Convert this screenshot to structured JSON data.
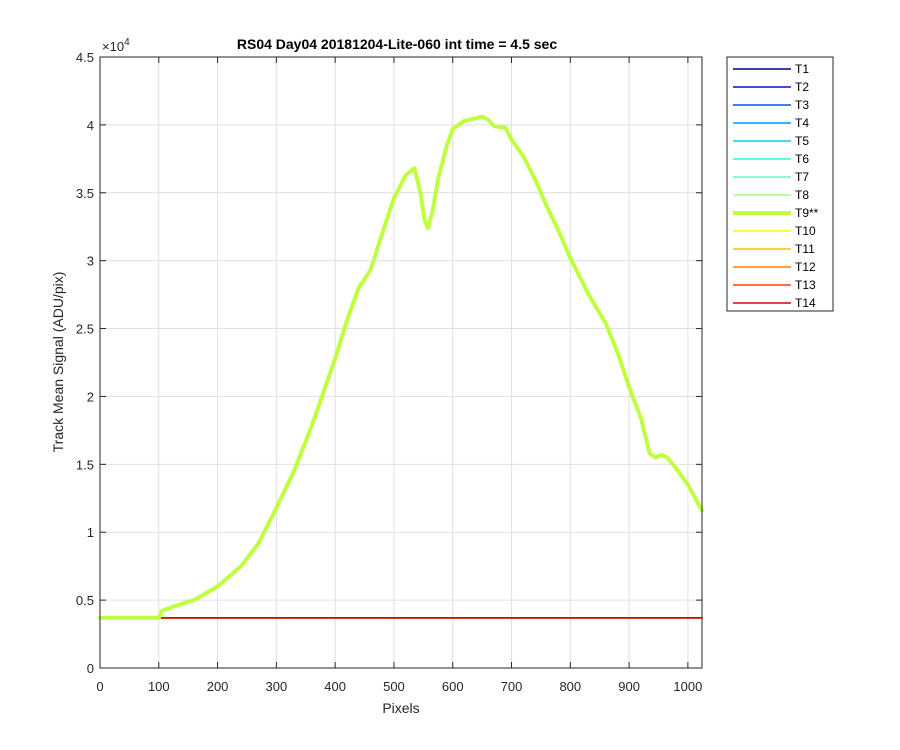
{
  "chart_data": {
    "type": "line",
    "title": "RS04 Day04 20181204-Lite-060 int time = 4.5 sec",
    "xlabel": "Pixels",
    "ylabel": "Track Mean Signal (ADU/pix)",
    "y_exponent_label": "×10",
    "y_exponent_power": "4",
    "xlim": [
      0,
      1024
    ],
    "ylim": [
      0,
      45000
    ],
    "xticks": [
      0,
      100,
      200,
      300,
      400,
      500,
      600,
      700,
      800,
      900,
      1000
    ],
    "yticks": [
      0,
      5000,
      10000,
      15000,
      20000,
      25000,
      30000,
      35000,
      40000,
      45000
    ],
    "ytick_labels": [
      "0",
      "0.5",
      "1",
      "1.5",
      "2",
      "2.5",
      "3",
      "3.5",
      "4",
      "4.5"
    ],
    "grid": true,
    "legend_position": "outside-right",
    "series": [
      {
        "name": "T1",
        "color": "#00008f",
        "highlight": false,
        "x": [
          0,
          1024
        ],
        "y": [
          3700,
          3700
        ]
      },
      {
        "name": "T2",
        "color": "#0010d0",
        "highlight": false,
        "x": [
          0,
          1024
        ],
        "y": [
          3700,
          3700
        ]
      },
      {
        "name": "T3",
        "color": "#0050ff",
        "highlight": false,
        "x": [
          0,
          1024
        ],
        "y": [
          3700,
          3700
        ]
      },
      {
        "name": "T4",
        "color": "#0090ff",
        "highlight": false,
        "x": [
          0,
          1024
        ],
        "y": [
          3700,
          3700
        ]
      },
      {
        "name": "T5",
        "color": "#00d0ff",
        "highlight": false,
        "x": [
          0,
          1024
        ],
        "y": [
          3700,
          3700
        ]
      },
      {
        "name": "T6",
        "color": "#20ffdf",
        "highlight": false,
        "x": [
          0,
          1024
        ],
        "y": [
          3700,
          3700
        ]
      },
      {
        "name": "T7",
        "color": "#60ffc0",
        "highlight": false,
        "x": [
          0,
          1024
        ],
        "y": [
          3700,
          3700
        ]
      },
      {
        "name": "T8",
        "color": "#9fff80",
        "highlight": false,
        "x": [
          0,
          1024
        ],
        "y": [
          3700,
          3700
        ]
      },
      {
        "name": "T9**",
        "color": "#bfff40",
        "highlight": true,
        "x": [
          0,
          100,
          105,
          130,
          160,
          200,
          240,
          270,
          300,
          330,
          360,
          400,
          420,
          440,
          460,
          480,
          500,
          520,
          535,
          545,
          552,
          558,
          565,
          575,
          590,
          600,
          620,
          640,
          650,
          660,
          670,
          690,
          700,
          720,
          740,
          760,
          780,
          800,
          830,
          860,
          880,
          900,
          920,
          935,
          945,
          955,
          965,
          980,
          1000,
          1024
        ],
        "y": [
          3700,
          3700,
          4200,
          4600,
          5000,
          6000,
          7500,
          9200,
          11800,
          14500,
          17800,
          22800,
          25600,
          28000,
          29300,
          32000,
          34600,
          36300,
          36800,
          35000,
          33000,
          32400,
          33500,
          36000,
          38500,
          39700,
          40300,
          40500,
          40600,
          40400,
          39900,
          39800,
          38900,
          37700,
          36000,
          34000,
          32200,
          30200,
          27600,
          25400,
          23300,
          20700,
          18400,
          15800,
          15500,
          15700,
          15500,
          14700,
          13500,
          11600
        ]
      },
      {
        "name": "T10",
        "color": "#ffff00",
        "highlight": false,
        "x": [
          0,
          1024
        ],
        "y": [
          3700,
          3700
        ]
      },
      {
        "name": "T11",
        "color": "#ffc000",
        "highlight": false,
        "x": [
          0,
          1024
        ],
        "y": [
          3700,
          3700
        ]
      },
      {
        "name": "T12",
        "color": "#ff8000",
        "highlight": false,
        "x": [
          0,
          1024
        ],
        "y": [
          3700,
          3700
        ]
      },
      {
        "name": "T13",
        "color": "#ff4000",
        "highlight": false,
        "x": [
          0,
          1024
        ],
        "y": [
          3700,
          3700
        ]
      },
      {
        "name": "T14",
        "color": "#e00000",
        "highlight": false,
        "x": [
          0,
          1024
        ],
        "y": [
          3700,
          3700
        ]
      }
    ]
  }
}
